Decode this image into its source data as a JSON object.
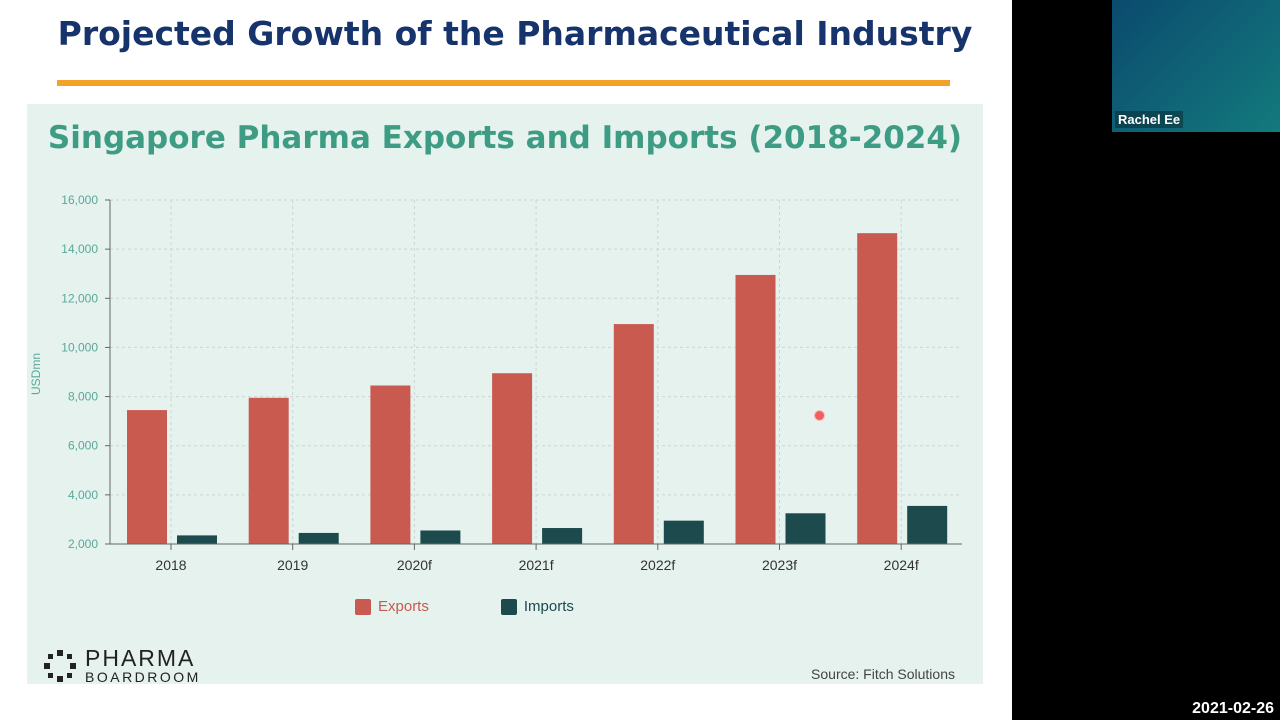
{
  "slide": {
    "title": "Projected Growth of the Pharmaceutical Industry",
    "source": "Source: Fitch Solutions",
    "logo_line1": "PHARMA",
    "logo_line2": "BOARDROOM"
  },
  "colors": {
    "exports": "#c85a50",
    "imports": "#1d4a4d",
    "title": "#17336b",
    "accent": "#f2a229"
  },
  "chart_data": {
    "type": "bar",
    "title": "Singapore Pharma Exports and Imports (2018-2024)",
    "xlabel": "",
    "ylabel": "USDmn",
    "ylim": [
      2000,
      16000
    ],
    "yticks": [
      "2,000",
      "4,000",
      "6,000",
      "8,000",
      "10,000",
      "12,000",
      "14,000",
      "16,000"
    ],
    "categories": [
      "2018",
      "2019",
      "2020f",
      "2021f",
      "2022f",
      "2023f",
      "2024f"
    ],
    "series": [
      {
        "name": "Exports",
        "values": [
          7450,
          7950,
          8450,
          8950,
          10950,
          12950,
          14650
        ]
      },
      {
        "name": "Imports",
        "values": [
          2350,
          2450,
          2550,
          2650,
          2950,
          3250,
          3550
        ]
      }
    ],
    "grid": true,
    "legend": "bottom"
  },
  "video": {
    "participant": "Rachel Ee",
    "date": "2021-02-26"
  }
}
